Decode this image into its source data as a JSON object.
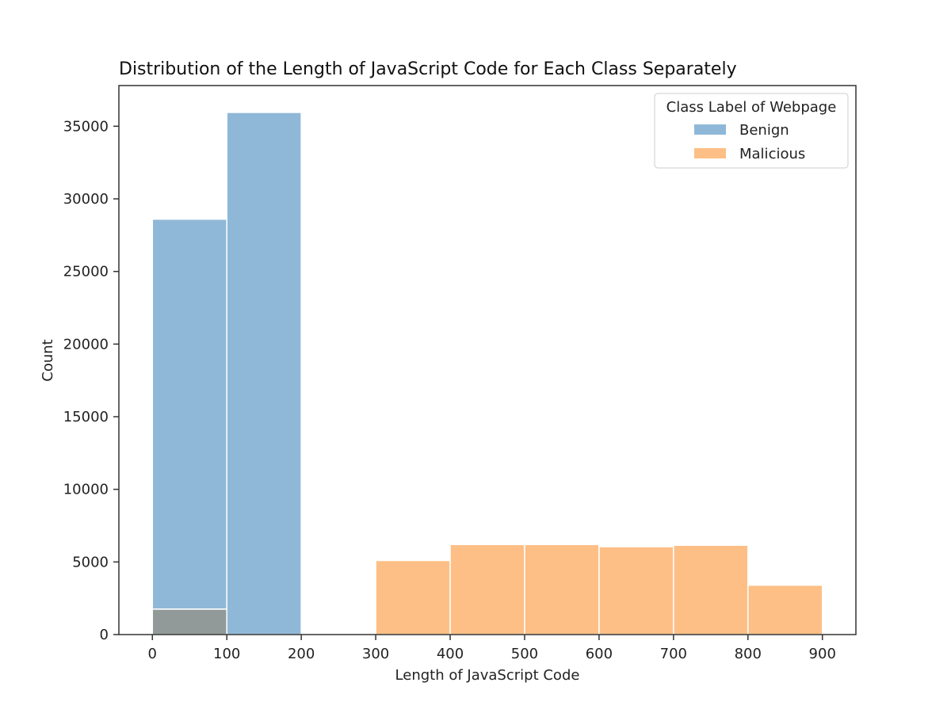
{
  "chart_data": {
    "type": "bar",
    "title": "Distribution of the Length of JavaScript Code for Each Class Separately",
    "xlabel": "Length of JavaScript Code",
    "ylabel": "Count",
    "xlim": [
      -45,
      945
    ],
    "ylim": [
      0,
      37800
    ],
    "xticks": [
      0,
      100,
      200,
      300,
      400,
      500,
      600,
      700,
      800,
      900
    ],
    "yticks": [
      0,
      5000,
      10000,
      15000,
      20000,
      25000,
      30000,
      35000
    ],
    "grid": false,
    "legend": {
      "title": "Class Label of Webpage",
      "placement": "top-right"
    },
    "bin_edges": [
      0,
      100,
      200,
      300,
      400,
      500,
      600,
      700,
      800,
      900
    ],
    "series": [
      {
        "name": "Benign",
        "color": "#8fb8d8",
        "values": [
          28600,
          35950,
          0,
          0,
          0,
          0,
          0,
          0,
          0
        ]
      },
      {
        "name": "Malicious",
        "color": "#fdbf86",
        "values": [
          1750,
          0,
          0,
          5100,
          6200,
          6200,
          6050,
          6150,
          3400
        ]
      }
    ],
    "overlap_color": "#919999"
  }
}
